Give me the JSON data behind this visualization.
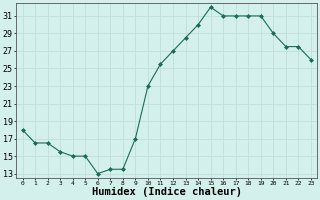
{
  "x": [
    0,
    1,
    2,
    3,
    4,
    5,
    6,
    7,
    8,
    9,
    10,
    11,
    12,
    13,
    14,
    15,
    16,
    17,
    18,
    19,
    20,
    21,
    22,
    23
  ],
  "y": [
    18,
    16.5,
    16.5,
    15.5,
    15,
    15,
    13,
    13.5,
    13.5,
    17,
    23,
    25.5,
    27,
    28.5,
    30,
    32,
    31,
    31,
    31,
    31,
    29,
    27.5,
    27.5,
    26
  ],
  "line_color": "#1a6b5a",
  "marker_color": "#1a6b5a",
  "bg_color": "#d4f0ec",
  "grid_color": "#c0ddd8",
  "xlabel": "Humidex (Indice chaleur)",
  "xlabel_fontsize": 7.5,
  "ylabel_ticks": [
    13,
    15,
    17,
    19,
    21,
    23,
    25,
    27,
    29,
    31
  ],
  "xlim": [
    -0.5,
    23.5
  ],
  "ylim": [
    12.5,
    32.5
  ],
  "xtick_labels": [
    "0",
    "1",
    "2",
    "3",
    "4",
    "5",
    "6",
    "7",
    "8",
    "9",
    "10",
    "11",
    "12",
    "13",
    "14",
    "15",
    "16",
    "17",
    "18",
    "19",
    "20",
    "21",
    "22",
    "23"
  ]
}
